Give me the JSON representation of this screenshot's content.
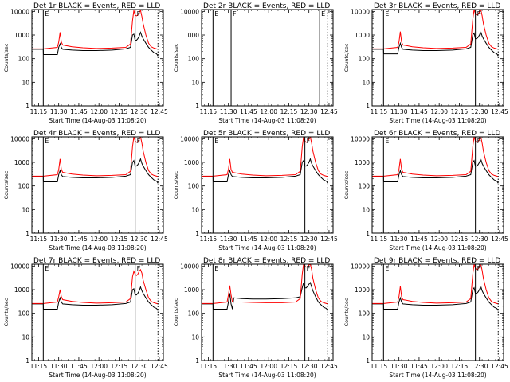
{
  "figure": {
    "xlabel": "Start Time (14-Aug-03 11:08:20)",
    "ylabel": "Counts/sec",
    "x_ticks": [
      "11:15",
      "11:30",
      "11:45",
      "12:00",
      "12:15",
      "12:30",
      "12:45"
    ],
    "x_tick_minutes": [
      15,
      30,
      45,
      60,
      75,
      90,
      105
    ],
    "x_range_minutes": [
      10,
      108
    ],
    "y_ticks": [
      "1",
      "10",
      "100",
      "1000",
      "10000"
    ],
    "y_tick_values": [
      1,
      10,
      100,
      1000,
      10000
    ],
    "y_range": [
      1,
      12000
    ],
    "y_scale": "log",
    "series_colors": {
      "events": "#000000",
      "lld": "#ff0000"
    }
  },
  "chart_data": [
    {
      "type": "line",
      "title": "Det 1r BLACK = Events, RED = LLD",
      "markers": [
        {
          "label": "E",
          "x": 18.5,
          "style": "solid"
        },
        {
          "label": "F",
          "x": 87,
          "style": "solid"
        },
        {
          "label": "",
          "x": 104,
          "style": "dotted"
        }
      ],
      "x": [
        10,
        18.5,
        18.6,
        29,
        30,
        31,
        32,
        33,
        40,
        48,
        58,
        70,
        80,
        83.5,
        85,
        86,
        87,
        88,
        89,
        90,
        91,
        92,
        93,
        95,
        97,
        99,
        101,
        103,
        104
      ],
      "series": [
        {
          "name": "Events",
          "values": [
            250,
            250,
            150,
            150,
            300,
            430,
            300,
            250,
            230,
            220,
            220,
            230,
            260,
            300,
            1000,
            1100,
            600,
            600,
            700,
            900,
            1300,
            900,
            700,
            450,
            300,
            230,
            180,
            160,
            130
          ]
        },
        {
          "name": "LLD",
          "values": [
            260,
            260,
            260,
            300,
            500,
            1300,
            500,
            380,
            320,
            290,
            270,
            280,
            300,
            420,
            4000,
            11000,
            7000,
            6500,
            7000,
            9000,
            11000,
            6000,
            3000,
            1000,
            450,
            320,
            280,
            260,
            250
          ]
        }
      ]
    },
    {
      "type": "line",
      "title": "Det 2r BLACK = Events, RED = LLD",
      "markers": [
        {
          "label": "E",
          "x": 18.5,
          "style": "solid"
        },
        {
          "label": "F",
          "x": 32,
          "style": "solid"
        },
        {
          "label": "E",
          "x": 98,
          "style": "solid"
        },
        {
          "label": "",
          "x": 104,
          "style": "dotted"
        }
      ],
      "x": [],
      "series": [
        {
          "name": "Events",
          "values": []
        },
        {
          "name": "LLD",
          "values": []
        }
      ]
    },
    {
      "type": "line",
      "title": "Det 3r BLACK = Events, RED = LLD",
      "markers": [
        {
          "label": "E",
          "x": 18.5,
          "style": "solid"
        },
        {
          "label": "F",
          "x": 87,
          "style": "solid"
        },
        {
          "label": "",
          "x": 104,
          "style": "dotted"
        }
      ],
      "x": [
        10,
        18.5,
        18.6,
        29,
        30,
        31,
        32,
        33,
        40,
        48,
        58,
        70,
        80,
        83.5,
        85,
        86,
        87,
        88,
        89,
        90,
        91,
        92,
        93,
        95,
        97,
        99,
        101,
        103,
        104
      ],
      "series": [
        {
          "name": "Events",
          "values": [
            250,
            250,
            160,
            160,
            300,
            450,
            300,
            250,
            230,
            220,
            220,
            230,
            260,
            300,
            1000,
            1200,
            700,
            700,
            800,
            1000,
            1400,
            900,
            700,
            450,
            300,
            230,
            180,
            160,
            130
          ]
        },
        {
          "name": "LLD",
          "values": [
            260,
            260,
            260,
            300,
            500,
            1400,
            500,
            380,
            320,
            290,
            270,
            280,
            300,
            420,
            4500,
            12000,
            8000,
            7000,
            7500,
            9500,
            12000,
            6500,
            3000,
            1000,
            450,
            320,
            280,
            260,
            250
          ]
        }
      ]
    },
    {
      "type": "line",
      "title": "Det 4r BLACK = Events, RED = LLD",
      "markers": [
        {
          "label": "E",
          "x": 18.5,
          "style": "solid"
        },
        {
          "label": "F",
          "x": 87,
          "style": "solid"
        },
        {
          "label": "",
          "x": 104,
          "style": "dotted"
        }
      ],
      "x": [
        10,
        18.5,
        18.6,
        29,
        30,
        31,
        32,
        33,
        40,
        48,
        58,
        70,
        80,
        83.5,
        85,
        86,
        87,
        88,
        89,
        90,
        91,
        92,
        93,
        95,
        97,
        99,
        101,
        103,
        104
      ],
      "series": [
        {
          "name": "Events",
          "values": [
            250,
            250,
            150,
            150,
            300,
            450,
            300,
            250,
            230,
            220,
            220,
            230,
            260,
            300,
            1000,
            1200,
            700,
            700,
            800,
            1000,
            1400,
            900,
            700,
            450,
            300,
            230,
            180,
            160,
            130
          ]
        },
        {
          "name": "LLD",
          "values": [
            260,
            260,
            260,
            300,
            500,
            1400,
            500,
            380,
            320,
            290,
            270,
            280,
            300,
            420,
            4500,
            12000,
            8000,
            7000,
            7500,
            9500,
            12000,
            6500,
            3000,
            1000,
            450,
            320,
            280,
            260,
            250
          ]
        }
      ]
    },
    {
      "type": "line",
      "title": "Det 5r BLACK = Events, RED = LLD",
      "markers": [
        {
          "label": "E",
          "x": 18.5,
          "style": "solid"
        },
        {
          "label": "F",
          "x": 87,
          "style": "solid"
        },
        {
          "label": "",
          "x": 104,
          "style": "dotted"
        }
      ],
      "x": [
        10,
        18.5,
        18.6,
        29,
        30,
        31,
        32,
        33,
        40,
        48,
        58,
        70,
        80,
        83.5,
        85,
        86,
        87,
        88,
        89,
        90,
        91,
        92,
        93,
        95,
        97,
        99,
        101,
        103,
        104
      ],
      "series": [
        {
          "name": "Events",
          "values": [
            250,
            250,
            150,
            150,
            300,
            450,
            300,
            250,
            230,
            220,
            220,
            230,
            260,
            300,
            1000,
            1200,
            700,
            700,
            800,
            1000,
            1400,
            900,
            700,
            450,
            300,
            230,
            180,
            160,
            130
          ]
        },
        {
          "name": "LLD",
          "values": [
            260,
            260,
            260,
            300,
            500,
            1400,
            500,
            380,
            320,
            290,
            270,
            280,
            300,
            420,
            4500,
            12000,
            8000,
            7000,
            7500,
            9500,
            12000,
            6500,
            3000,
            1000,
            450,
            320,
            280,
            260,
            250
          ]
        }
      ]
    },
    {
      "type": "line",
      "title": "Det 6r BLACK = Events, RED = LLD",
      "markers": [
        {
          "label": "E",
          "x": 18.5,
          "style": "solid"
        },
        {
          "label": "F",
          "x": 87,
          "style": "solid"
        },
        {
          "label": "",
          "x": 104,
          "style": "dotted"
        }
      ],
      "x": [
        10,
        18.5,
        18.6,
        29,
        30,
        31,
        32,
        33,
        40,
        48,
        58,
        70,
        80,
        83.5,
        85,
        86,
        87,
        88,
        89,
        90,
        91,
        92,
        93,
        95,
        97,
        99,
        101,
        103,
        104
      ],
      "series": [
        {
          "name": "Events",
          "values": [
            250,
            250,
            150,
            150,
            300,
            450,
            300,
            250,
            230,
            220,
            220,
            230,
            260,
            300,
            1000,
            1200,
            700,
            700,
            800,
            1000,
            1400,
            900,
            700,
            450,
            300,
            230,
            180,
            160,
            130
          ]
        },
        {
          "name": "LLD",
          "values": [
            260,
            260,
            260,
            300,
            500,
            1400,
            500,
            380,
            320,
            290,
            270,
            280,
            300,
            420,
            4500,
            12000,
            8000,
            7000,
            7500,
            9500,
            12000,
            6500,
            3000,
            1000,
            450,
            320,
            280,
            260,
            250
          ]
        }
      ]
    },
    {
      "type": "line",
      "title": "Det 7r BLACK = Events, RED = LLD",
      "markers": [
        {
          "label": "E",
          "x": 18.5,
          "style": "solid"
        },
        {
          "label": "F",
          "x": 87,
          "style": "solid"
        },
        {
          "label": "",
          "x": 104,
          "style": "dotted"
        }
      ],
      "x": [
        10,
        18.5,
        18.6,
        29,
        30,
        31,
        32,
        33,
        40,
        48,
        58,
        70,
        80,
        83.5,
        85,
        86,
        87,
        88,
        89,
        90,
        91,
        92,
        93,
        95,
        97,
        99,
        101,
        103,
        104
      ],
      "series": [
        {
          "name": "Events",
          "values": [
            250,
            250,
            150,
            150,
            300,
            450,
            300,
            250,
            230,
            220,
            220,
            230,
            260,
            300,
            1000,
            1100,
            600,
            600,
            700,
            900,
            1300,
            900,
            700,
            450,
            300,
            230,
            180,
            160,
            130
          ]
        },
        {
          "name": "LLD",
          "values": [
            260,
            260,
            260,
            300,
            500,
            1000,
            500,
            380,
            320,
            290,
            270,
            280,
            300,
            420,
            3500,
            6000,
            4500,
            4000,
            4500,
            6000,
            7000,
            5000,
            2500,
            1000,
            450,
            320,
            280,
            260,
            250
          ]
        }
      ]
    },
    {
      "type": "line",
      "title": "Det 8r BLACK = Events, RED = LLD",
      "markers": [
        {
          "label": "E",
          "x": 18.5,
          "style": "solid"
        },
        {
          "label": "F",
          "x": 87,
          "style": "solid"
        },
        {
          "label": "",
          "x": 104,
          "style": "dotted"
        }
      ],
      "x": [
        10,
        18.5,
        18.6,
        29,
        30,
        31,
        32,
        33,
        34,
        40,
        48,
        58,
        70,
        80,
        83.5,
        85,
        86,
        87,
        88,
        89,
        90,
        91,
        92,
        93,
        95,
        97,
        99,
        101,
        103,
        104
      ],
      "series": [
        {
          "name": "Events",
          "values": [
            250,
            250,
            150,
            150,
            300,
            700,
            250,
            150,
            450,
            420,
            400,
            400,
            420,
            450,
            500,
            1200,
            2000,
            1200,
            1200,
            1400,
            1700,
            2000,
            1300,
            900,
            500,
            300,
            230,
            180,
            160,
            130
          ]
        },
        {
          "name": "LLD",
          "values": [
            260,
            260,
            260,
            300,
            600,
            1500,
            600,
            300,
            300,
            300,
            290,
            280,
            280,
            300,
            420,
            4500,
            12000,
            10000,
            9000,
            9500,
            11000,
            12000,
            7000,
            3000,
            1000,
            450,
            320,
            280,
            260,
            250
          ]
        }
      ]
    },
    {
      "type": "line",
      "title": "Det 9r BLACK = Events, RED = LLD",
      "markers": [
        {
          "label": "E",
          "x": 18.5,
          "style": "solid"
        },
        {
          "label": "F",
          "x": 87,
          "style": "solid"
        },
        {
          "label": "",
          "x": 104,
          "style": "dotted"
        }
      ],
      "x": [
        10,
        18.5,
        18.6,
        29,
        30,
        31,
        32,
        33,
        40,
        48,
        58,
        70,
        80,
        83.5,
        85,
        86,
        87,
        88,
        89,
        90,
        91,
        92,
        93,
        95,
        97,
        99,
        101,
        103,
        104
      ],
      "series": [
        {
          "name": "Events",
          "values": [
            250,
            250,
            150,
            150,
            300,
            450,
            300,
            250,
            230,
            220,
            220,
            230,
            260,
            300,
            1000,
            1200,
            700,
            700,
            800,
            1000,
            1400,
            900,
            700,
            450,
            300,
            230,
            180,
            160,
            130
          ]
        },
        {
          "name": "LLD",
          "values": [
            260,
            260,
            260,
            300,
            500,
            1400,
            500,
            380,
            320,
            290,
            270,
            280,
            300,
            420,
            4500,
            12000,
            8000,
            7000,
            7500,
            9500,
            12000,
            6500,
            3000,
            1000,
            450,
            320,
            280,
            260,
            250
          ]
        }
      ]
    }
  ]
}
